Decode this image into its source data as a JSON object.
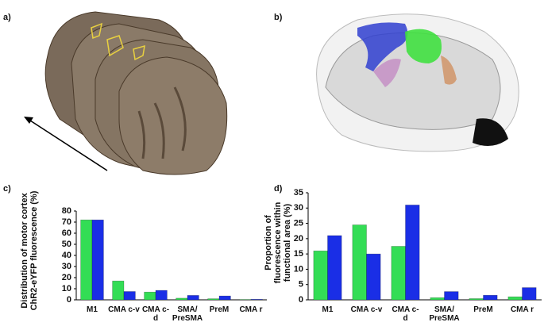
{
  "panels": [
    "a)",
    "b)",
    "c)",
    "d)"
  ],
  "chart_data": [
    {
      "type": "bar",
      "y_label": "Distribution of motor cortex ChR2-eYFP fluorescence (%)",
      "categories": [
        "M1",
        "CMA c-v",
        "CMA c-d",
        "SMA/ PreSMA",
        "PreM",
        "CMA r"
      ],
      "series": [
        {
          "color": "#33dd55",
          "values": [
            72,
            17,
            7,
            1.5,
            1,
            0.3
          ]
        },
        {
          "color": "#1a2ee6",
          "values": [
            72,
            7.5,
            8.5,
            4,
            3.5,
            0.5
          ]
        }
      ],
      "ylim": [
        0,
        80
      ],
      "yticks": [
        0,
        10,
        20,
        30,
        40,
        50,
        60,
        70,
        80
      ],
      "grid": false
    },
    {
      "type": "bar",
      "y_label": "Proportion of fluorescence within functional area (%)",
      "categories": [
        "M1",
        "CMA c-v",
        "CMA c-d",
        "SMA/ PreSMA",
        "PreM",
        "CMA r"
      ],
      "series": [
        {
          "color": "#33dd55",
          "values": [
            16,
            24.5,
            17.5,
            0.7,
            0.4,
            1
          ]
        },
        {
          "color": "#1a2ee6",
          "values": [
            21,
            15,
            31,
            2.7,
            1.5,
            4
          ]
        }
      ],
      "ylim": [
        0,
        35
      ],
      "yticks": [
        0,
        5,
        10,
        15,
        20,
        25,
        30,
        35
      ],
      "grid": false
    }
  ]
}
